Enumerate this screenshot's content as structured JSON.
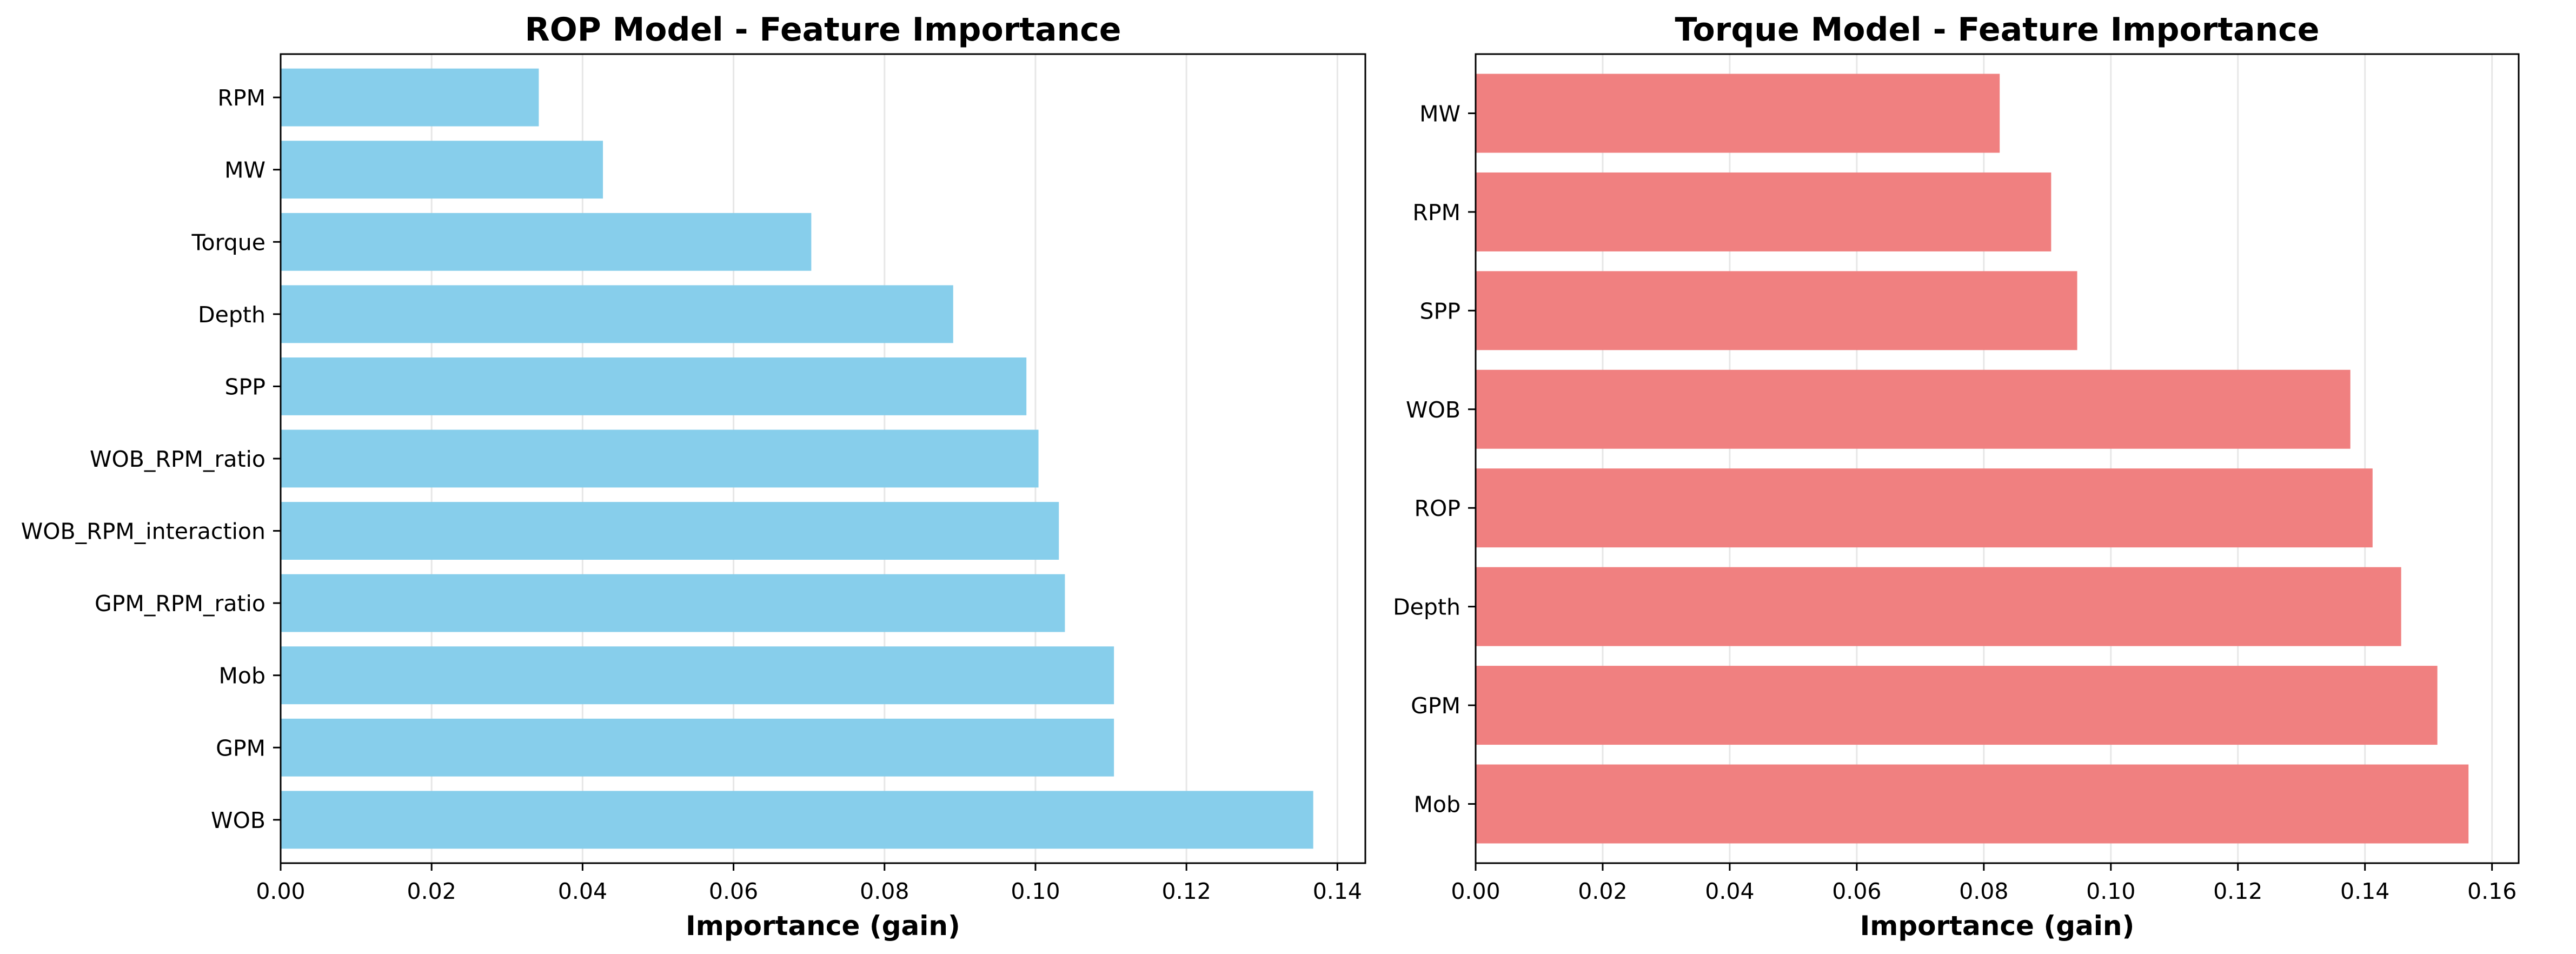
{
  "colors": {
    "rop_bar": "#87CEEB",
    "torque_bar": "#F08080"
  },
  "chart_data": [
    {
      "type": "bar",
      "orientation": "horizontal",
      "title": "ROP Model - Feature Importance",
      "xlabel": "Importance (gain)",
      "ylabel": "",
      "xlim": [
        0,
        0.1437
      ],
      "xticks": [
        0.0,
        0.02,
        0.04,
        0.06,
        0.08,
        0.1,
        0.12,
        0.14
      ],
      "xtick_labels": [
        "0.00",
        "0.02",
        "0.04",
        "0.06",
        "0.08",
        "0.10",
        "0.12",
        "0.14"
      ],
      "grid": "x",
      "categories": [
        "RPM",
        "MW",
        "Torque",
        "Depth",
        "SPP",
        "WOB_RPM_ratio",
        "WOB_RPM_interaction",
        "GPM_RPM_ratio",
        "Mob",
        "GPM",
        "WOB"
      ],
      "values": [
        0.0342,
        0.0427,
        0.0703,
        0.0891,
        0.0988,
        0.1004,
        0.1031,
        0.1039,
        0.1104,
        0.1104,
        0.1368
      ],
      "color": "#87CEEB"
    },
    {
      "type": "bar",
      "orientation": "horizontal",
      "title": "Torque Model - Feature Importance",
      "xlabel": "Importance (gain)",
      "ylabel": "",
      "xlim": [
        0,
        0.1642
      ],
      "xticks": [
        0.0,
        0.02,
        0.04,
        0.06,
        0.08,
        0.1,
        0.12,
        0.14,
        0.16
      ],
      "xtick_labels": [
        "0.00",
        "0.02",
        "0.04",
        "0.06",
        "0.08",
        "0.10",
        "0.12",
        "0.14",
        "0.16"
      ],
      "grid": "x",
      "categories": [
        "MW",
        "RPM",
        "SPP",
        "WOB",
        "ROP",
        "Depth",
        "GPM",
        "Mob"
      ],
      "values": [
        0.0825,
        0.0906,
        0.0947,
        0.1377,
        0.1412,
        0.1457,
        0.1514,
        0.1563
      ],
      "color": "#F08080"
    }
  ]
}
